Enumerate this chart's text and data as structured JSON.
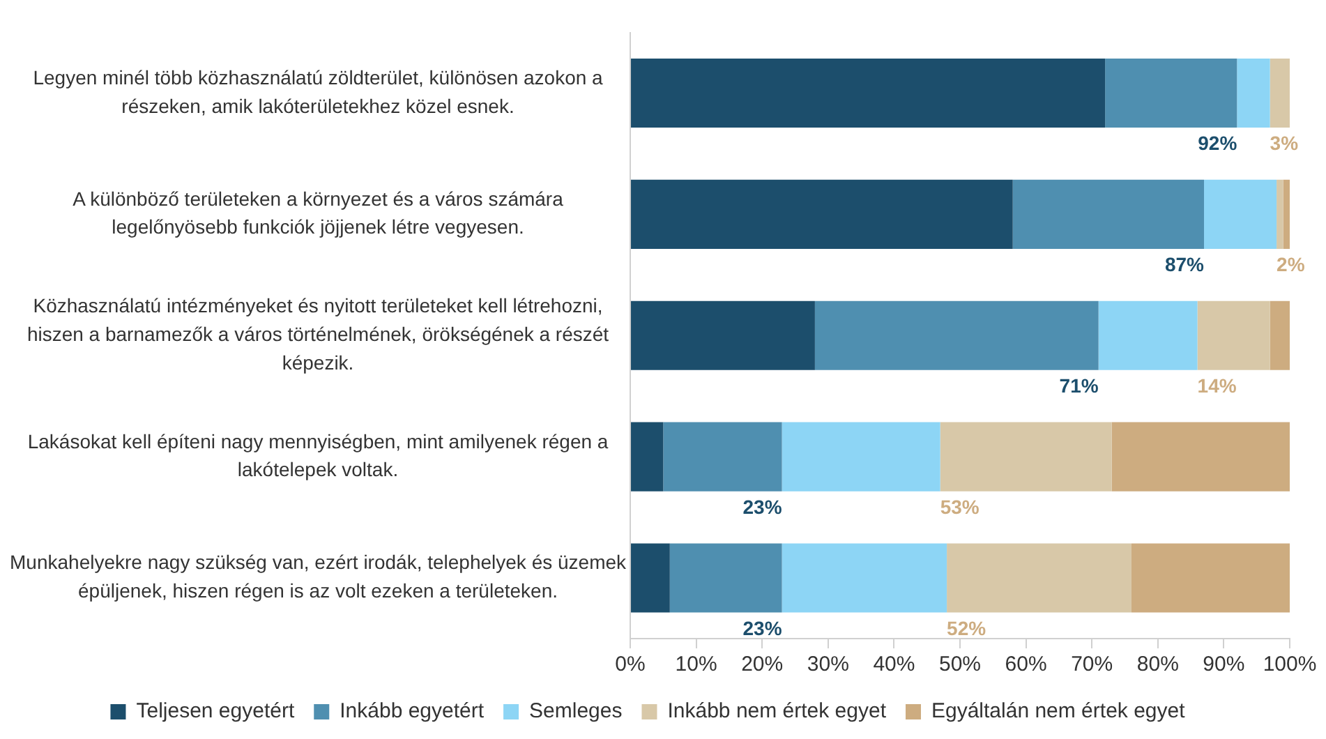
{
  "chart_data": {
    "type": "bar",
    "orientation": "horizontal",
    "stacked": true,
    "categories": [
      "Legyen minél több közhasználatú zöldterület, különösen azokon a részeken, amik lakóterületekhez közel esnek.",
      "A különböző területeken a környezet és a város számára legelőnyösebb funkciók jöjjenek létre vegyesen.",
      "Közhasználatú intézményeket és nyitott területeket kell létrehozni, hiszen a barnamezők a város történelmének, örökségének a részét képezik.",
      "Lakásokat kell építeni nagy mennyiségben, mint amilyenek régen a lakótelepek voltak.",
      "Munkahelyekre nagy szükség van, ezért irodák, telephelyek és üzemek épüljenek, hiszen régen is az volt ezeken a területeken."
    ],
    "series": [
      {
        "name": "Teljesen egyetért",
        "color": "#1c4e6c",
        "values": [
          72,
          58,
          28,
          5,
          6
        ]
      },
      {
        "name": "Inkább egyetért",
        "color": "#4f8fb0",
        "values": [
          20,
          29,
          43,
          18,
          17
        ]
      },
      {
        "name": "Semleges",
        "color": "#8dd5f5",
        "values": [
          5,
          11,
          15,
          24,
          25
        ]
      },
      {
        "name": "Inkább nem értek egyet",
        "color": "#d8c8a8",
        "values": [
          3,
          1,
          11,
          26,
          28
        ]
      },
      {
        "name": "Egyáltalán nem értek egyet",
        "color": "#cdac80",
        "values": [
          0,
          1,
          3,
          27,
          24
        ]
      }
    ],
    "xlim": [
      0,
      100
    ],
    "xticks": [
      {
        "value": 0,
        "label": "0%"
      },
      {
        "value": 10,
        "label": "10%"
      },
      {
        "value": 20,
        "label": "20%"
      },
      {
        "value": 30,
        "label": "30%"
      },
      {
        "value": 40,
        "label": "40%"
      },
      {
        "value": 50,
        "label": "50%"
      },
      {
        "value": 60,
        "label": "60%"
      },
      {
        "value": 70,
        "label": "70%"
      },
      {
        "value": 80,
        "label": "80%"
      },
      {
        "value": 90,
        "label": "90%"
      },
      {
        "value": 100,
        "label": "100%"
      }
    ],
    "annotations": [
      {
        "text": "92%",
        "x": 92,
        "y": "Legyen minél több közhasználatú zöldterület, különösen azokon a részeken, amik lakóterületekhez közel esnek."
      },
      {
        "text": "3%",
        "x": 97,
        "y": "Legyen minél több közhasználatú zöldterület, különösen azokon a részeken, amik lakóterületekhez közel esnek."
      },
      {
        "text": "87%",
        "x": 87,
        "y": "A különböző területeken a környezet és a város számára legelőnyösebb funkciók jöjjenek létre vegyesen."
      },
      {
        "text": "2%",
        "x": 98,
        "y": "A különböző területeken a környezet és a város számára legelőnyösebb funkciók jöjjenek létre vegyesen."
      },
      {
        "text": "71%",
        "x": 71,
        "y": "Közhasználatú intézményeket és nyitott területeket kell létrehozni, hiszen a barnamezők a város történelmének, örökségének a részét képezik."
      },
      {
        "text": "14%",
        "x": 86,
        "y": "Közhasználatú intézményeket és nyitott területeket kell létrehozni, hiszen a barnamezők a város történelmének, örökségének a részét képezik."
      },
      {
        "text": "23%",
        "x": 23,
        "y": "Lakásokat kell építeni nagy mennyiségben, mint amilyenek régen a lakótelepek voltak."
      },
      {
        "text": "53%",
        "x": 47,
        "y": "Lakásokat kell építeni nagy mennyiségben, mint amilyenek régen a lakótelepek voltak."
      },
      {
        "text": "23%",
        "x": 23,
        "y": "Munkahelyekre nagy szükség van, ezért irodák, telephelyek és üzemek épüljenek, hiszen régen is az volt ezeken a területeken."
      },
      {
        "text": "52%",
        "x": 48,
        "y": "Munkahelyekre nagy szükség van, ezért irodák, telephelyek és üzemek épüljenek, hiszen régen is az volt ezeken a területeken."
      }
    ],
    "grid": false,
    "legend": "bottom"
  }
}
